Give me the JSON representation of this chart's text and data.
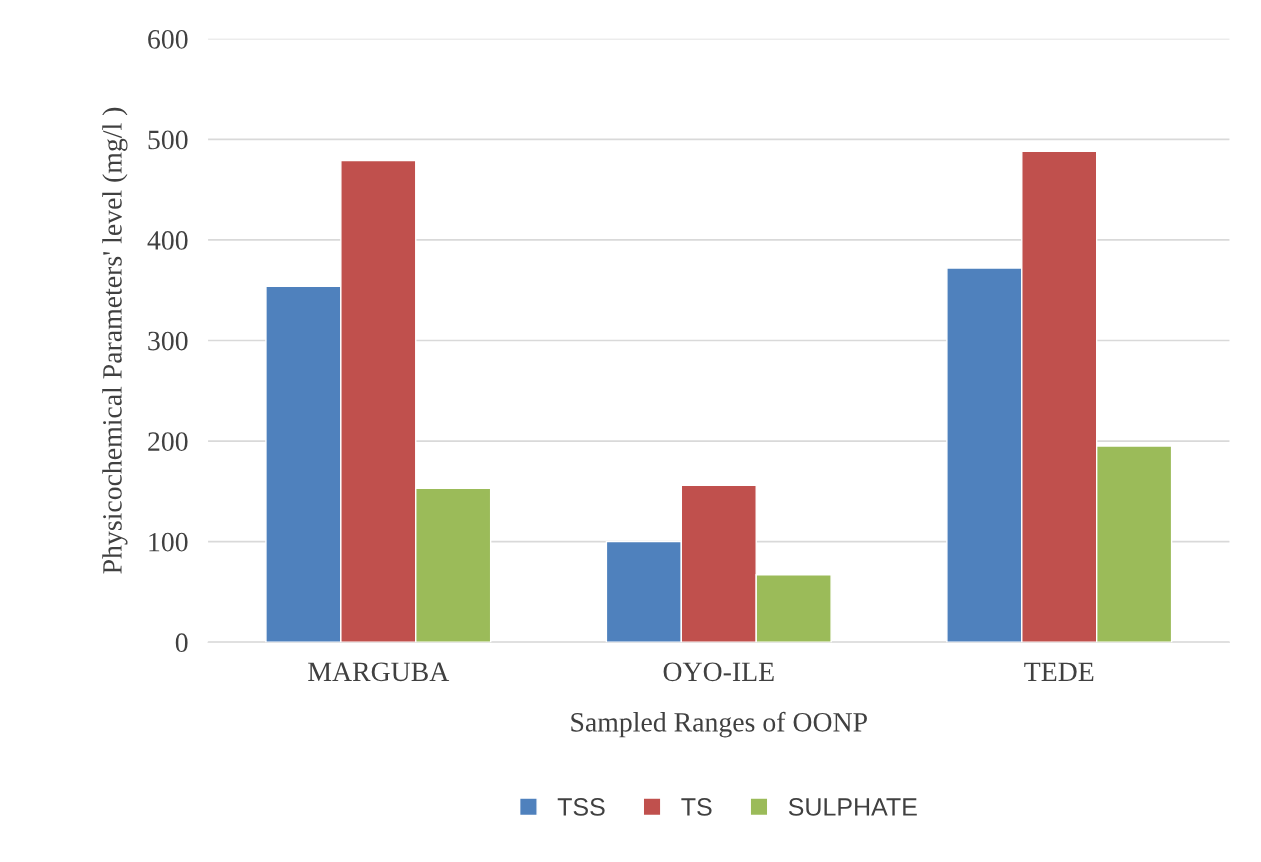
{
  "chart_data": {
    "type": "bar",
    "xlabel": "Sampled Ranges of OONP",
    "ylabel": "Physicochemical Parameters' level (mg/l )",
    "categories": [
      "MARGUBA",
      "OYO-ILE",
      "TEDE"
    ],
    "series": [
      {
        "name": "TSS",
        "color": "#4f81bd",
        "values": [
          354,
          100,
          372
        ]
      },
      {
        "name": "TS",
        "color": "#c0504d",
        "values": [
          479,
          156,
          488
        ]
      },
      {
        "name": "SULPHATE",
        "color": "#9bbb59",
        "values": [
          153,
          67,
          195
        ]
      }
    ],
    "ylim": [
      0,
      600
    ],
    "yticks": [
      0,
      100,
      200,
      300,
      400,
      500,
      600
    ],
    "grid": "y",
    "legend": "bottom"
  }
}
